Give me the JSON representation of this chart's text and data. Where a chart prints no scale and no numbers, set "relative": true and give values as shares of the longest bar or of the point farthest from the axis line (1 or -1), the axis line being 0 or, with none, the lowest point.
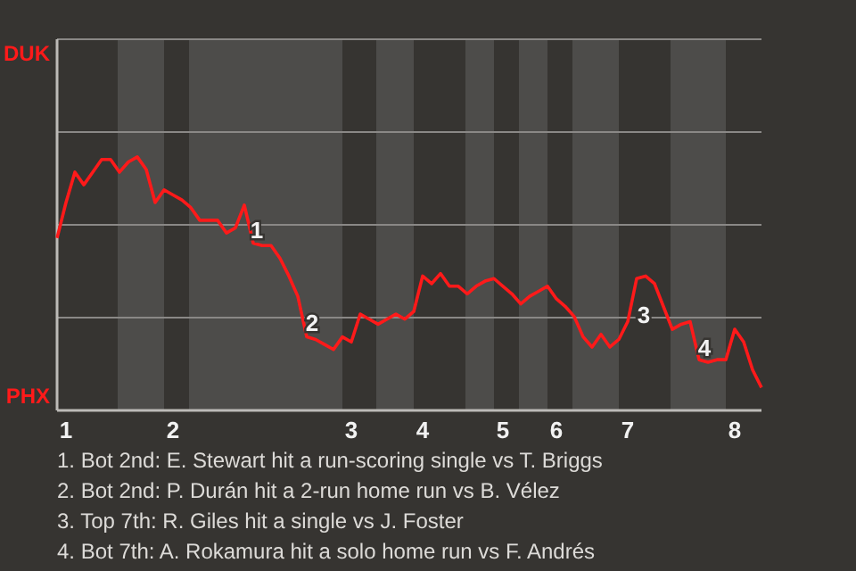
{
  "chart_data": {
    "type": "line",
    "categories": [
      null,
      "1",
      null,
      null,
      null,
      null,
      null,
      null,
      null,
      null,
      null,
      null,
      null,
      "2",
      null,
      null,
      null,
      null,
      null,
      null,
      null,
      null,
      null,
      null,
      null,
      null,
      null,
      null,
      null,
      null,
      null,
      null,
      null,
      "3",
      null,
      null,
      null,
      null,
      null,
      null,
      null,
      "4",
      null,
      null,
      null,
      null,
      null,
      null,
      null,
      null,
      "5",
      null,
      null,
      null,
      null,
      null,
      "6",
      null,
      null,
      null,
      null,
      null,
      null,
      null,
      "7",
      null,
      null,
      null,
      null,
      null,
      null,
      null,
      null,
      null,
      null,
      null,
      "8",
      null,
      null,
      null
    ],
    "relative": true,
    "series": [
      {
        "color": "#ff1a1a",
        "values": [
          0.68,
          0.82,
          0.94,
          0.89,
          0.94,
          0.99,
          0.99,
          0.94,
          0.98,
          1,
          0.95,
          0.82,
          0.87,
          0.85,
          0.83,
          0.8,
          0.75,
          0.75,
          0.75,
          0.7,
          0.72,
          0.81,
          0.66,
          0.65,
          0.65,
          0.6,
          0.53,
          0.45,
          0.29,
          0.28,
          0.26,
          0.24,
          0.29,
          0.27,
          0.38,
          0.36,
          0.34,
          0.36,
          0.38,
          0.36,
          0.39,
          0.53,
          0.5,
          0.54,
          0.49,
          0.49,
          0.46,
          0.49,
          0.51,
          0.52,
          0.49,
          0.46,
          0.42,
          0.45,
          0.47,
          0.49,
          0.44,
          0.41,
          0.37,
          0.29,
          0.25,
          0.3,
          0.25,
          0.28,
          0.35,
          0.52,
          0.53,
          0.5,
          0.41,
          0.32,
          0.34,
          0.35,
          0.2,
          0.19,
          0.2,
          0.2,
          0.32,
          0.27,
          0.16,
          0.09
        ]
      }
    ],
    "ref_lines": [
      {
        "axis": "y",
        "value": 0.366,
        "color": "#8a8886"
      },
      {
        "axis": "y",
        "value": 0.732,
        "color": "#8a8886"
      },
      {
        "axis": "y",
        "value": 1.098,
        "color": "#8a8886"
      },
      {
        "axis": "y",
        "value": 1.464,
        "color": "#8a8886"
      }
    ],
    "marker": "none",
    "line_style": "solid",
    "annotations": [
      "DUK",
      "PHX",
      "1",
      "2",
      "3",
      "4",
      "1. Bot 2nd: E. Stewart hit a run-scoring single vs T. Briggs",
      "2. Bot 2nd: P. Durán hit a 2-run home run vs B. Vélez",
      "3. Top 7th: R. Giles hit a single vs J. Foster",
      "4. Bot 7th: A. Rokamura hit a solo home run vs F. Andrés"
    ]
  }
}
